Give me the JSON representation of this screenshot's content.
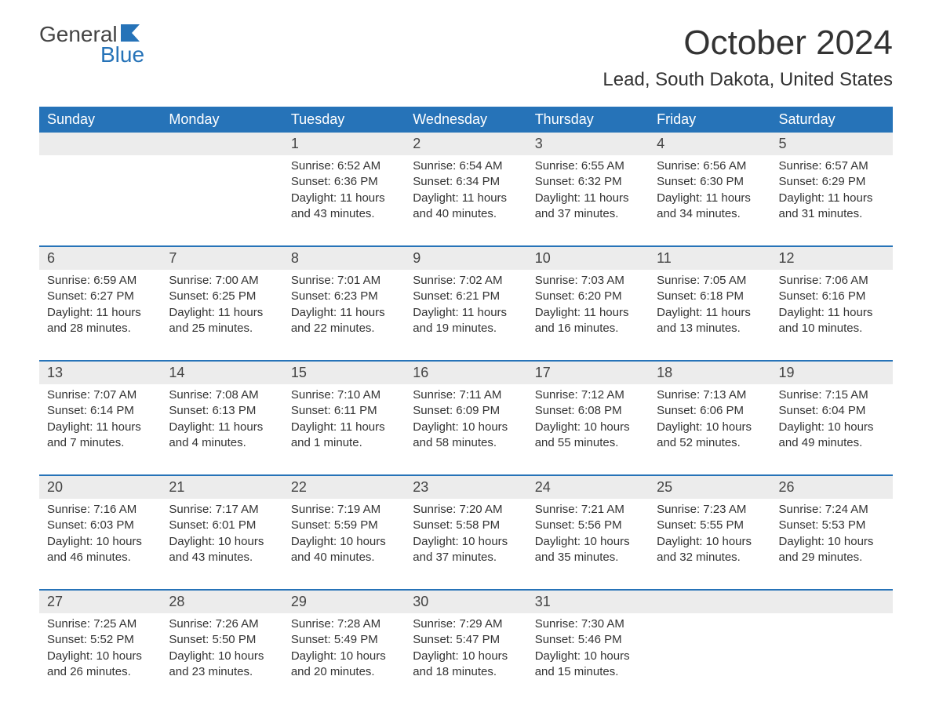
{
  "logo": {
    "top": "General",
    "bottom": "Blue",
    "flag_color": "#2673b8"
  },
  "title": "October 2024",
  "location": "Lead, South Dakota, United States",
  "colors": {
    "header_bg": "#2673b8",
    "header_text": "#ffffff",
    "daynum_bg": "#ececec",
    "border_top": "#2673b8",
    "body_text": "#333333",
    "page_bg": "#ffffff"
  },
  "weekdays": [
    "Sunday",
    "Monday",
    "Tuesday",
    "Wednesday",
    "Thursday",
    "Friday",
    "Saturday"
  ],
  "weeks": [
    [
      {
        "day": "",
        "sunrise": "",
        "sunset": "",
        "daylight": ""
      },
      {
        "day": "",
        "sunrise": "",
        "sunset": "",
        "daylight": ""
      },
      {
        "day": "1",
        "sunrise": "Sunrise: 6:52 AM",
        "sunset": "Sunset: 6:36 PM",
        "daylight": "Daylight: 11 hours and 43 minutes."
      },
      {
        "day": "2",
        "sunrise": "Sunrise: 6:54 AM",
        "sunset": "Sunset: 6:34 PM",
        "daylight": "Daylight: 11 hours and 40 minutes."
      },
      {
        "day": "3",
        "sunrise": "Sunrise: 6:55 AM",
        "sunset": "Sunset: 6:32 PM",
        "daylight": "Daylight: 11 hours and 37 minutes."
      },
      {
        "day": "4",
        "sunrise": "Sunrise: 6:56 AM",
        "sunset": "Sunset: 6:30 PM",
        "daylight": "Daylight: 11 hours and 34 minutes."
      },
      {
        "day": "5",
        "sunrise": "Sunrise: 6:57 AM",
        "sunset": "Sunset: 6:29 PM",
        "daylight": "Daylight: 11 hours and 31 minutes."
      }
    ],
    [
      {
        "day": "6",
        "sunrise": "Sunrise: 6:59 AM",
        "sunset": "Sunset: 6:27 PM",
        "daylight": "Daylight: 11 hours and 28 minutes."
      },
      {
        "day": "7",
        "sunrise": "Sunrise: 7:00 AM",
        "sunset": "Sunset: 6:25 PM",
        "daylight": "Daylight: 11 hours and 25 minutes."
      },
      {
        "day": "8",
        "sunrise": "Sunrise: 7:01 AM",
        "sunset": "Sunset: 6:23 PM",
        "daylight": "Daylight: 11 hours and 22 minutes."
      },
      {
        "day": "9",
        "sunrise": "Sunrise: 7:02 AM",
        "sunset": "Sunset: 6:21 PM",
        "daylight": "Daylight: 11 hours and 19 minutes."
      },
      {
        "day": "10",
        "sunrise": "Sunrise: 7:03 AM",
        "sunset": "Sunset: 6:20 PM",
        "daylight": "Daylight: 11 hours and 16 minutes."
      },
      {
        "day": "11",
        "sunrise": "Sunrise: 7:05 AM",
        "sunset": "Sunset: 6:18 PM",
        "daylight": "Daylight: 11 hours and 13 minutes."
      },
      {
        "day": "12",
        "sunrise": "Sunrise: 7:06 AM",
        "sunset": "Sunset: 6:16 PM",
        "daylight": "Daylight: 11 hours and 10 minutes."
      }
    ],
    [
      {
        "day": "13",
        "sunrise": "Sunrise: 7:07 AM",
        "sunset": "Sunset: 6:14 PM",
        "daylight": "Daylight: 11 hours and 7 minutes."
      },
      {
        "day": "14",
        "sunrise": "Sunrise: 7:08 AM",
        "sunset": "Sunset: 6:13 PM",
        "daylight": "Daylight: 11 hours and 4 minutes."
      },
      {
        "day": "15",
        "sunrise": "Sunrise: 7:10 AM",
        "sunset": "Sunset: 6:11 PM",
        "daylight": "Daylight: 11 hours and 1 minute."
      },
      {
        "day": "16",
        "sunrise": "Sunrise: 7:11 AM",
        "sunset": "Sunset: 6:09 PM",
        "daylight": "Daylight: 10 hours and 58 minutes."
      },
      {
        "day": "17",
        "sunrise": "Sunrise: 7:12 AM",
        "sunset": "Sunset: 6:08 PM",
        "daylight": "Daylight: 10 hours and 55 minutes."
      },
      {
        "day": "18",
        "sunrise": "Sunrise: 7:13 AM",
        "sunset": "Sunset: 6:06 PM",
        "daylight": "Daylight: 10 hours and 52 minutes."
      },
      {
        "day": "19",
        "sunrise": "Sunrise: 7:15 AM",
        "sunset": "Sunset: 6:04 PM",
        "daylight": "Daylight: 10 hours and 49 minutes."
      }
    ],
    [
      {
        "day": "20",
        "sunrise": "Sunrise: 7:16 AM",
        "sunset": "Sunset: 6:03 PM",
        "daylight": "Daylight: 10 hours and 46 minutes."
      },
      {
        "day": "21",
        "sunrise": "Sunrise: 7:17 AM",
        "sunset": "Sunset: 6:01 PM",
        "daylight": "Daylight: 10 hours and 43 minutes."
      },
      {
        "day": "22",
        "sunrise": "Sunrise: 7:19 AM",
        "sunset": "Sunset: 5:59 PM",
        "daylight": "Daylight: 10 hours and 40 minutes."
      },
      {
        "day": "23",
        "sunrise": "Sunrise: 7:20 AM",
        "sunset": "Sunset: 5:58 PM",
        "daylight": "Daylight: 10 hours and 37 minutes."
      },
      {
        "day": "24",
        "sunrise": "Sunrise: 7:21 AM",
        "sunset": "Sunset: 5:56 PM",
        "daylight": "Daylight: 10 hours and 35 minutes."
      },
      {
        "day": "25",
        "sunrise": "Sunrise: 7:23 AM",
        "sunset": "Sunset: 5:55 PM",
        "daylight": "Daylight: 10 hours and 32 minutes."
      },
      {
        "day": "26",
        "sunrise": "Sunrise: 7:24 AM",
        "sunset": "Sunset: 5:53 PM",
        "daylight": "Daylight: 10 hours and 29 minutes."
      }
    ],
    [
      {
        "day": "27",
        "sunrise": "Sunrise: 7:25 AM",
        "sunset": "Sunset: 5:52 PM",
        "daylight": "Daylight: 10 hours and 26 minutes."
      },
      {
        "day": "28",
        "sunrise": "Sunrise: 7:26 AM",
        "sunset": "Sunset: 5:50 PM",
        "daylight": "Daylight: 10 hours and 23 minutes."
      },
      {
        "day": "29",
        "sunrise": "Sunrise: 7:28 AM",
        "sunset": "Sunset: 5:49 PM",
        "daylight": "Daylight: 10 hours and 20 minutes."
      },
      {
        "day": "30",
        "sunrise": "Sunrise: 7:29 AM",
        "sunset": "Sunset: 5:47 PM",
        "daylight": "Daylight: 10 hours and 18 minutes."
      },
      {
        "day": "31",
        "sunrise": "Sunrise: 7:30 AM",
        "sunset": "Sunset: 5:46 PM",
        "daylight": "Daylight: 10 hours and 15 minutes."
      },
      {
        "day": "",
        "sunrise": "",
        "sunset": "",
        "daylight": ""
      },
      {
        "day": "",
        "sunrise": "",
        "sunset": "",
        "daylight": ""
      }
    ]
  ]
}
